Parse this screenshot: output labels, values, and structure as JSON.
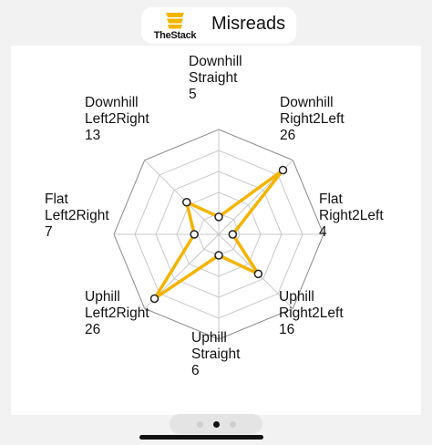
{
  "header": {
    "title": "Misreads",
    "logo_text": "TheStack",
    "logo_icon": "stack-logo-icon",
    "accent": "#f4b400"
  },
  "chart_data": {
    "type": "radar",
    "title": "Misreads",
    "categories": [
      {
        "name_lines": [
          "Downhill",
          "Straight"
        ],
        "value_label": "5"
      },
      {
        "name_lines": [
          "Downhill",
          "Right2Left"
        ],
        "value_label": "26"
      },
      {
        "name_lines": [
          "Flat",
          "Right2Left"
        ],
        "value_label": "4"
      },
      {
        "name_lines": [
          "Uphill",
          "Right2Left"
        ],
        "value_label": "16"
      },
      {
        "name_lines": [
          "Uphill",
          "Straight"
        ],
        "value_label": "6"
      },
      {
        "name_lines": [
          "Uphill",
          "Left2Right"
        ],
        "value_label": "26"
      },
      {
        "name_lines": [
          "Flat",
          "Left2Right"
        ],
        "value_label": "7"
      },
      {
        "name_lines": [
          "Downhill",
          "Left2Right"
        ],
        "value_label": "13"
      }
    ],
    "values": [
      5,
      26,
      4,
      16,
      6,
      26,
      7,
      13
    ],
    "rmax": 30,
    "rings": 5,
    "grid": true,
    "series_color": "#f4b400"
  },
  "pager": {
    "pages": 3,
    "active_index": 1
  }
}
